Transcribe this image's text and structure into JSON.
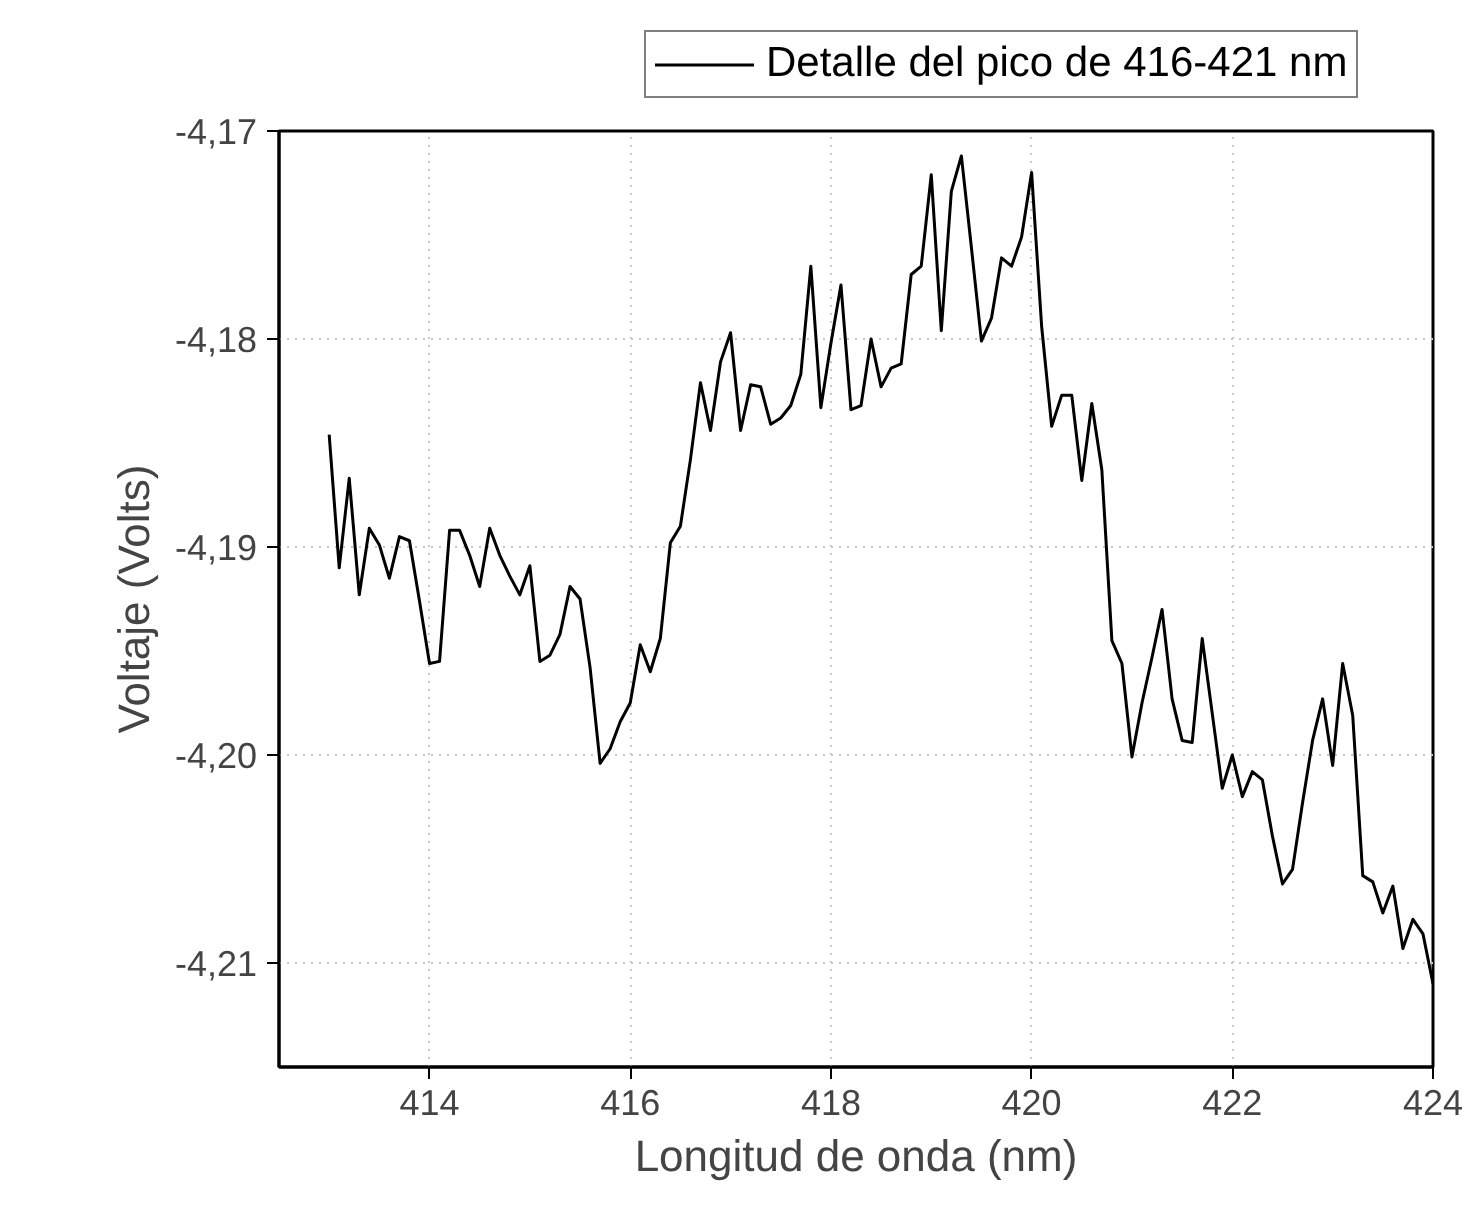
{
  "chart_data": {
    "type": "line",
    "xlabel": "Longitud de onda (nm)",
    "ylabel": "Voltaje (Volts)",
    "xlim": [
      412.5,
      424
    ],
    "ylim": [
      -4.215,
      -4.17
    ],
    "xticks": [
      414,
      416,
      418,
      420,
      422,
      424
    ],
    "yticks": [
      {
        "value": -4.17,
        "label": "-4,17"
      },
      {
        "value": -4.18,
        "label": "-4,18"
      },
      {
        "value": -4.19,
        "label": "-4,19"
      },
      {
        "value": -4.2,
        "label": "-4,20"
      },
      {
        "value": -4.21,
        "label": "-4,21"
      }
    ],
    "grid": true,
    "legend": "top",
    "line_style": "solid",
    "x": [
      413.0,
      413.1,
      413.2,
      413.3,
      413.4,
      413.5,
      413.6,
      413.7,
      413.8,
      413.9,
      414.0,
      414.1,
      414.2,
      414.3,
      414.4,
      414.5,
      414.6,
      414.7,
      414.8,
      414.9,
      415.0,
      415.1,
      415.2,
      415.3,
      415.4,
      415.5,
      415.6,
      415.7,
      415.8,
      415.9,
      416.0,
      416.1,
      416.2,
      416.3,
      416.4,
      416.5,
      416.6,
      416.7,
      416.8,
      416.9,
      417.0,
      417.1,
      417.2,
      417.3,
      417.4,
      417.5,
      417.6,
      417.7,
      417.8,
      417.9,
      418.0,
      418.1,
      418.2,
      418.3,
      418.4,
      418.5,
      418.6,
      418.7,
      418.8,
      418.9,
      419.0,
      419.1,
      419.2,
      419.3,
      419.4,
      419.5,
      419.6,
      419.7,
      419.8,
      419.9,
      420.0,
      420.1,
      420.2,
      420.3,
      420.4,
      420.5,
      420.6,
      420.7,
      420.8,
      420.9,
      421.0,
      421.1,
      421.2,
      421.3,
      421.4,
      421.5,
      421.6,
      421.7,
      421.8,
      421.9,
      422.0,
      422.1,
      422.2,
      422.3,
      422.4,
      422.5,
      422.6,
      422.7,
      422.8,
      422.9,
      423.0,
      423.1,
      423.2,
      423.3,
      423.4,
      423.5,
      423.6,
      423.7,
      423.8,
      423.9,
      424.0
    ],
    "series": [
      {
        "name": "Detalle del pico de 416-421 nm",
        "color": "#000000",
        "values": [
          -4.1846,
          -4.191,
          -4.1867,
          -4.1923,
          -4.1891,
          -4.1899,
          -4.1915,
          -4.1895,
          -4.1897,
          -4.1926,
          -4.1956,
          -4.1955,
          -4.1892,
          -4.1892,
          -4.1904,
          -4.1919,
          -4.1891,
          -4.1904,
          -4.1914,
          -4.1923,
          -4.1909,
          -4.1955,
          -4.1952,
          -4.1942,
          -4.1919,
          -4.1925,
          -4.1958,
          -4.2004,
          -4.1997,
          -4.1984,
          -4.1975,
          -4.1947,
          -4.196,
          -4.1944,
          -4.1898,
          -4.189,
          -4.1858,
          -4.1821,
          -4.1844,
          -4.1811,
          -4.1797,
          -4.1844,
          -4.1822,
          -4.1823,
          -4.1841,
          -4.1838,
          -4.1832,
          -4.1817,
          -4.1765,
          -4.1833,
          -4.1802,
          -4.1774,
          -4.1834,
          -4.1832,
          -4.18,
          -4.1823,
          -4.1814,
          -4.1812,
          -4.1769,
          -4.1765,
          -4.1721,
          -4.1796,
          -4.1729,
          -4.1712,
          -4.1756,
          -4.1801,
          -4.179,
          -4.1761,
          -4.1765,
          -4.1751,
          -4.172,
          -4.1794,
          -4.1842,
          -4.1827,
          -4.1827,
          -4.1868,
          -4.1831,
          -4.1863,
          -4.1945,
          -4.1956,
          -4.2001,
          -4.1975,
          -4.1953,
          -4.193,
          -4.1973,
          -4.1993,
          -4.1994,
          -4.1944,
          -4.198,
          -4.2016,
          -4.2,
          -4.202,
          -4.2008,
          -4.2012,
          -4.2039,
          -4.2062,
          -4.2055,
          -4.2023,
          -4.1993,
          -4.1973,
          -4.2005,
          -4.1956,
          -4.1981,
          -4.2058,
          -4.2061,
          -4.2076,
          -4.2063,
          -4.2093,
          -4.2079,
          -4.2086,
          -4.211
        ]
      }
    ]
  }
}
